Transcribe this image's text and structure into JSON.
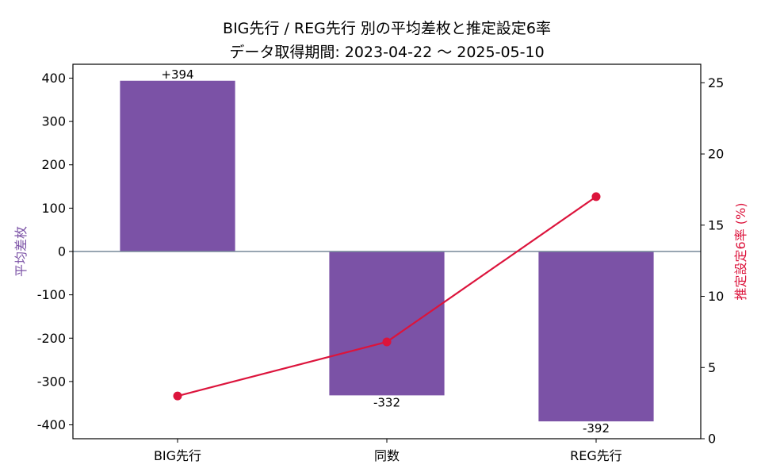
{
  "chart_data": {
    "type": "bar",
    "title": "BIG先行 / REG先行 別の平均差枚と推定設定6率",
    "subtitle": "データ取得期間: 2023-04-22 〜 2025-05-10",
    "categories": [
      "BIG先行",
      "同数",
      "REG先行"
    ],
    "series": [
      {
        "type": "bar",
        "axis": "left",
        "values": [
          394,
          -332,
          -392
        ],
        "labels": [
          "+394",
          "-332",
          "-392"
        ],
        "color": "#7b52a6"
      },
      {
        "type": "line",
        "axis": "right",
        "values": [
          3.0,
          6.8,
          17.0
        ],
        "color": "#dc143c"
      }
    ],
    "ylabel": "平均差枚",
    "ylabel_color": "#7b52a6",
    "ylim": [
      -432,
      432
    ],
    "yticks": [
      400,
      300,
      200,
      100,
      0,
      -100,
      -200,
      -300,
      -400
    ],
    "ytick_labels": [
      "400",
      "300",
      "200",
      "100",
      "0",
      "-100",
      "-200",
      "-300",
      "-400"
    ],
    "y2label": "推定設定6率 (%)",
    "y2label_color": "#dc143c",
    "y2lim": [
      0,
      26.3
    ],
    "y2ticks": [
      0,
      5,
      10,
      15,
      20,
      25
    ],
    "y2tick_labels": [
      "0",
      "5",
      "10",
      "15",
      "20",
      "25"
    ],
    "zero_line_color": "#778899",
    "grid": false,
    "legend": "none"
  }
}
